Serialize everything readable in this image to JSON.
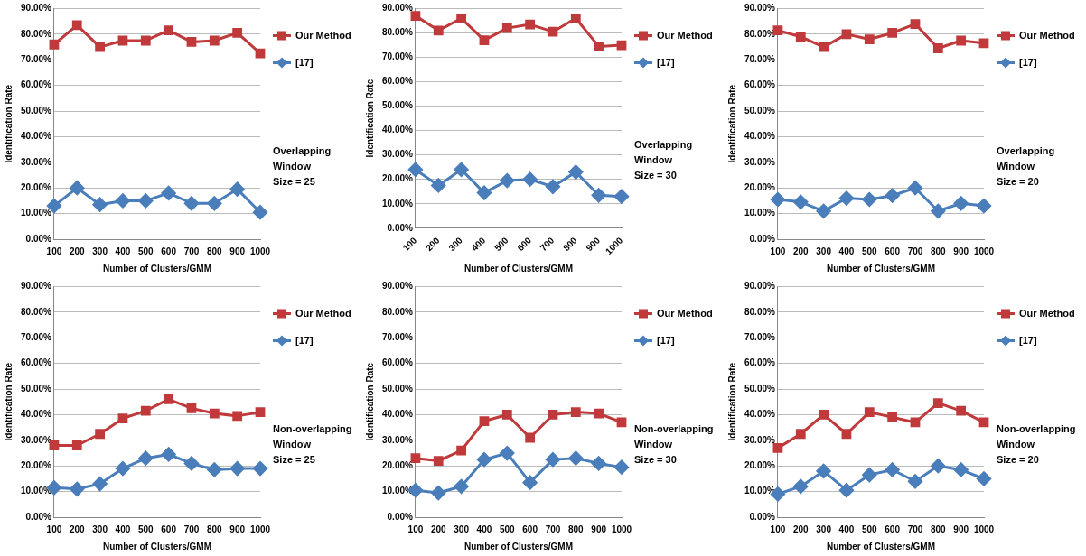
{
  "chart_data": [
    {
      "type": "line",
      "xlabel": "Number of Clusters/GMM",
      "ylabel": "Identification Rate",
      "categories": [
        "100",
        "200",
        "300",
        "400",
        "500",
        "600",
        "700",
        "800",
        "900",
        "1000"
      ],
      "ylim": [
        0,
        90
      ],
      "yticks": [
        {
          "value": 0,
          "label": "0.00%"
        },
        {
          "value": 10,
          "label": "10.00%"
        },
        {
          "value": 20,
          "label": "20.00%"
        },
        {
          "value": 30,
          "label": "30.00%"
        },
        {
          "value": 40,
          "label": "40.00%"
        },
        {
          "value": 50,
          "label": "50.00%"
        },
        {
          "value": 60,
          "label": "60.00%"
        },
        {
          "value": 70,
          "label": "70.00%"
        },
        {
          "value": 80,
          "label": "80.00%"
        },
        {
          "value": 90,
          "label": "90.00%"
        }
      ],
      "grid": "y",
      "legend": "right",
      "annotations": [
        "Overlapping\nWindow\nSize = 25"
      ],
      "series": [
        {
          "name": "Our Method",
          "color": "#c0393b",
          "marker": "square",
          "values": [
            76,
            83.5,
            75,
            77.5,
            77.5,
            81.5,
            77,
            77.5,
            80.5,
            72.5
          ]
        },
        {
          "name": "[17]",
          "color": "#4a7ebb",
          "marker": "diamond",
          "values": [
            13,
            20,
            13.5,
            15,
            15,
            18,
            14,
            14,
            19.5,
            10.5
          ]
        }
      ]
    },
    {
      "type": "line",
      "xlabel": "Number of Clusters/GMM",
      "ylabel": "Identification Rate",
      "categories": [
        "100",
        "200",
        "300",
        "400",
        "500",
        "600",
        "700",
        "800",
        "900",
        "1000"
      ],
      "ylim": [
        0,
        90
      ],
      "yticks": [
        {
          "value": 0,
          "label": "0.00%"
        },
        {
          "value": 10,
          "label": "10.00%"
        },
        {
          "value": 20,
          "label": "20.00%"
        },
        {
          "value": 30,
          "label": "30.00%"
        },
        {
          "value": 40,
          "label": "40.00%"
        },
        {
          "value": 50,
          "label": "50.00%"
        },
        {
          "value": 60,
          "label": "60.00%"
        },
        {
          "value": 70,
          "label": "70.00%"
        },
        {
          "value": 80,
          "label": "80.00%"
        },
        {
          "value": 90,
          "label": "90.00%"
        }
      ],
      "grid": "y",
      "legend": "right",
      "annotations": [
        "Overlapping\nWindow\nSize = 30"
      ],
      "series": [
        {
          "name": "Our Method",
          "color": "#c0393b",
          "marker": "square",
          "values": [
            87,
            81,
            86,
            77,
            82,
            83.5,
            80.5,
            86,
            74.5,
            75
          ]
        },
        {
          "name": "[17]",
          "color": "#4a7ebb",
          "marker": "diamond",
          "values": [
            24,
            17.5,
            24,
            14.5,
            19.5,
            20,
            17,
            23,
            13.5,
            13
          ]
        }
      ]
    },
    {
      "type": "line",
      "xlabel": "Number of Clusters/GMM",
      "ylabel": "Identification Rate",
      "categories": [
        "100",
        "200",
        "300",
        "400",
        "500",
        "600",
        "700",
        "800",
        "900",
        "1000"
      ],
      "ylim": [
        0,
        90
      ],
      "yticks": [
        {
          "value": 0,
          "label": "0.00%"
        },
        {
          "value": 10,
          "label": "10.00%"
        },
        {
          "value": 20,
          "label": "20.00%"
        },
        {
          "value": 30,
          "label": "30.00%"
        },
        {
          "value": 40,
          "label": "40.00%"
        },
        {
          "value": 50,
          "label": "50.00%"
        },
        {
          "value": 60,
          "label": "60.00%"
        },
        {
          "value": 70,
          "label": "70.00%"
        },
        {
          "value": 80,
          "label": "80.00%"
        },
        {
          "value": 90,
          "label": "90.00%"
        }
      ],
      "grid": "y",
      "legend": "right",
      "annotations": [
        "Overlapping\nWindow\nSize = 20"
      ],
      "series": [
        {
          "name": "Our Method",
          "color": "#c0393b",
          "marker": "square",
          "values": [
            81.5,
            79,
            75,
            80,
            78,
            80.5,
            84,
            74.5,
            77.5,
            76.5
          ]
        },
        {
          "name": "[17]",
          "color": "#4a7ebb",
          "marker": "diamond",
          "values": [
            15.5,
            14.5,
            11,
            16,
            15.5,
            17,
            20,
            11,
            14,
            13
          ]
        }
      ]
    },
    {
      "type": "line",
      "xlabel": "Number of Clusters/GMM",
      "ylabel": "Identification Rate",
      "categories": [
        "100",
        "200",
        "300",
        "400",
        "500",
        "600",
        "700",
        "800",
        "900",
        "1000"
      ],
      "ylim": [
        0,
        90
      ],
      "yticks": [
        {
          "value": 0,
          "label": "0.00%"
        },
        {
          "value": 10,
          "label": "10.00%"
        },
        {
          "value": 20,
          "label": "20.00%"
        },
        {
          "value": 30,
          "label": "30.00%"
        },
        {
          "value": 40,
          "label": "40.00%"
        },
        {
          "value": 50,
          "label": "50.00%"
        },
        {
          "value": 60,
          "label": "60.00%"
        },
        {
          "value": 70,
          "label": "70.00%"
        },
        {
          "value": 80,
          "label": "80.00%"
        },
        {
          "value": 90,
          "label": "90.00%"
        }
      ],
      "grid": "y",
      "legend": "right",
      "annotations": [
        "Non-overlapping\nWindow\nSize = 25"
      ],
      "series": [
        {
          "name": "Our Method",
          "color": "#c0393b",
          "marker": "square",
          "values": [
            28,
            28,
            32.5,
            38.5,
            41.5,
            46,
            42.5,
            40.5,
            39.5,
            41
          ]
        },
        {
          "name": "[17]",
          "color": "#4a7ebb",
          "marker": "diamond",
          "values": [
            11.5,
            11,
            13,
            19,
            23,
            24.5,
            21,
            18.5,
            19,
            19
          ]
        }
      ]
    },
    {
      "type": "line",
      "xlabel": "Number of Clusters/GMM",
      "ylabel": "Identification Rate",
      "categories": [
        "100",
        "200",
        "300",
        "400",
        "500",
        "600",
        "700",
        "800",
        "900",
        "1000"
      ],
      "ylim": [
        0,
        90
      ],
      "yticks": [
        {
          "value": 0,
          "label": "0.00%"
        },
        {
          "value": 10,
          "label": "10.00%"
        },
        {
          "value": 20,
          "label": "20.00%"
        },
        {
          "value": 30,
          "label": "30.00%"
        },
        {
          "value": 40,
          "label": "40.00%"
        },
        {
          "value": 50,
          "label": "50.00%"
        },
        {
          "value": 60,
          "label": "60.00%"
        },
        {
          "value": 70,
          "label": "70.00%"
        },
        {
          "value": 80,
          "label": "80.00%"
        },
        {
          "value": 90,
          "label": "90.00%"
        }
      ],
      "grid": "y",
      "legend": "right",
      "annotations": [
        "Non-overlapping\nWindow\nSize = 30"
      ],
      "series": [
        {
          "name": "Our Method",
          "color": "#c0393b",
          "marker": "square",
          "values": [
            23,
            22,
            26,
            37.5,
            40,
            31,
            40,
            41,
            40.5,
            37
          ]
        },
        {
          "name": "[17]",
          "color": "#4a7ebb",
          "marker": "diamond",
          "values": [
            10.5,
            9.5,
            12,
            22.5,
            25,
            13.5,
            22.5,
            23,
            21,
            19.5
          ]
        }
      ]
    },
    {
      "type": "line",
      "xlabel": "Number of Clusters/GMM",
      "ylabel": "Identification Rate",
      "categories": [
        "100",
        "200",
        "300",
        "400",
        "500",
        "600",
        "700",
        "800",
        "900",
        "1000"
      ],
      "ylim": [
        0,
        90
      ],
      "yticks": [
        {
          "value": 0,
          "label": "0.00%"
        },
        {
          "value": 10,
          "label": "10.00%"
        },
        {
          "value": 20,
          "label": "20.00%"
        },
        {
          "value": 30,
          "label": "30.00%"
        },
        {
          "value": 40,
          "label": "40.00%"
        },
        {
          "value": 50,
          "label": "50.00%"
        },
        {
          "value": 60,
          "label": "60.00%"
        },
        {
          "value": 70,
          "label": "70.00%"
        },
        {
          "value": 80,
          "label": "80.00%"
        },
        {
          "value": 90,
          "label": "90.00%"
        }
      ],
      "grid": "y",
      "legend": "right",
      "annotations": [
        "Non-overlapping\nWindow\nSize = 20"
      ],
      "series": [
        {
          "name": "Our Method",
          "color": "#c0393b",
          "marker": "square",
          "values": [
            27,
            32.5,
            40,
            32.5,
            41,
            39,
            37,
            44.5,
            41.5,
            37
          ]
        },
        {
          "name": "[17]",
          "color": "#4a7ebb",
          "marker": "diamond",
          "values": [
            9,
            12,
            18,
            10.5,
            16.5,
            18.5,
            14,
            20,
            18.5,
            15
          ]
        }
      ]
    }
  ]
}
